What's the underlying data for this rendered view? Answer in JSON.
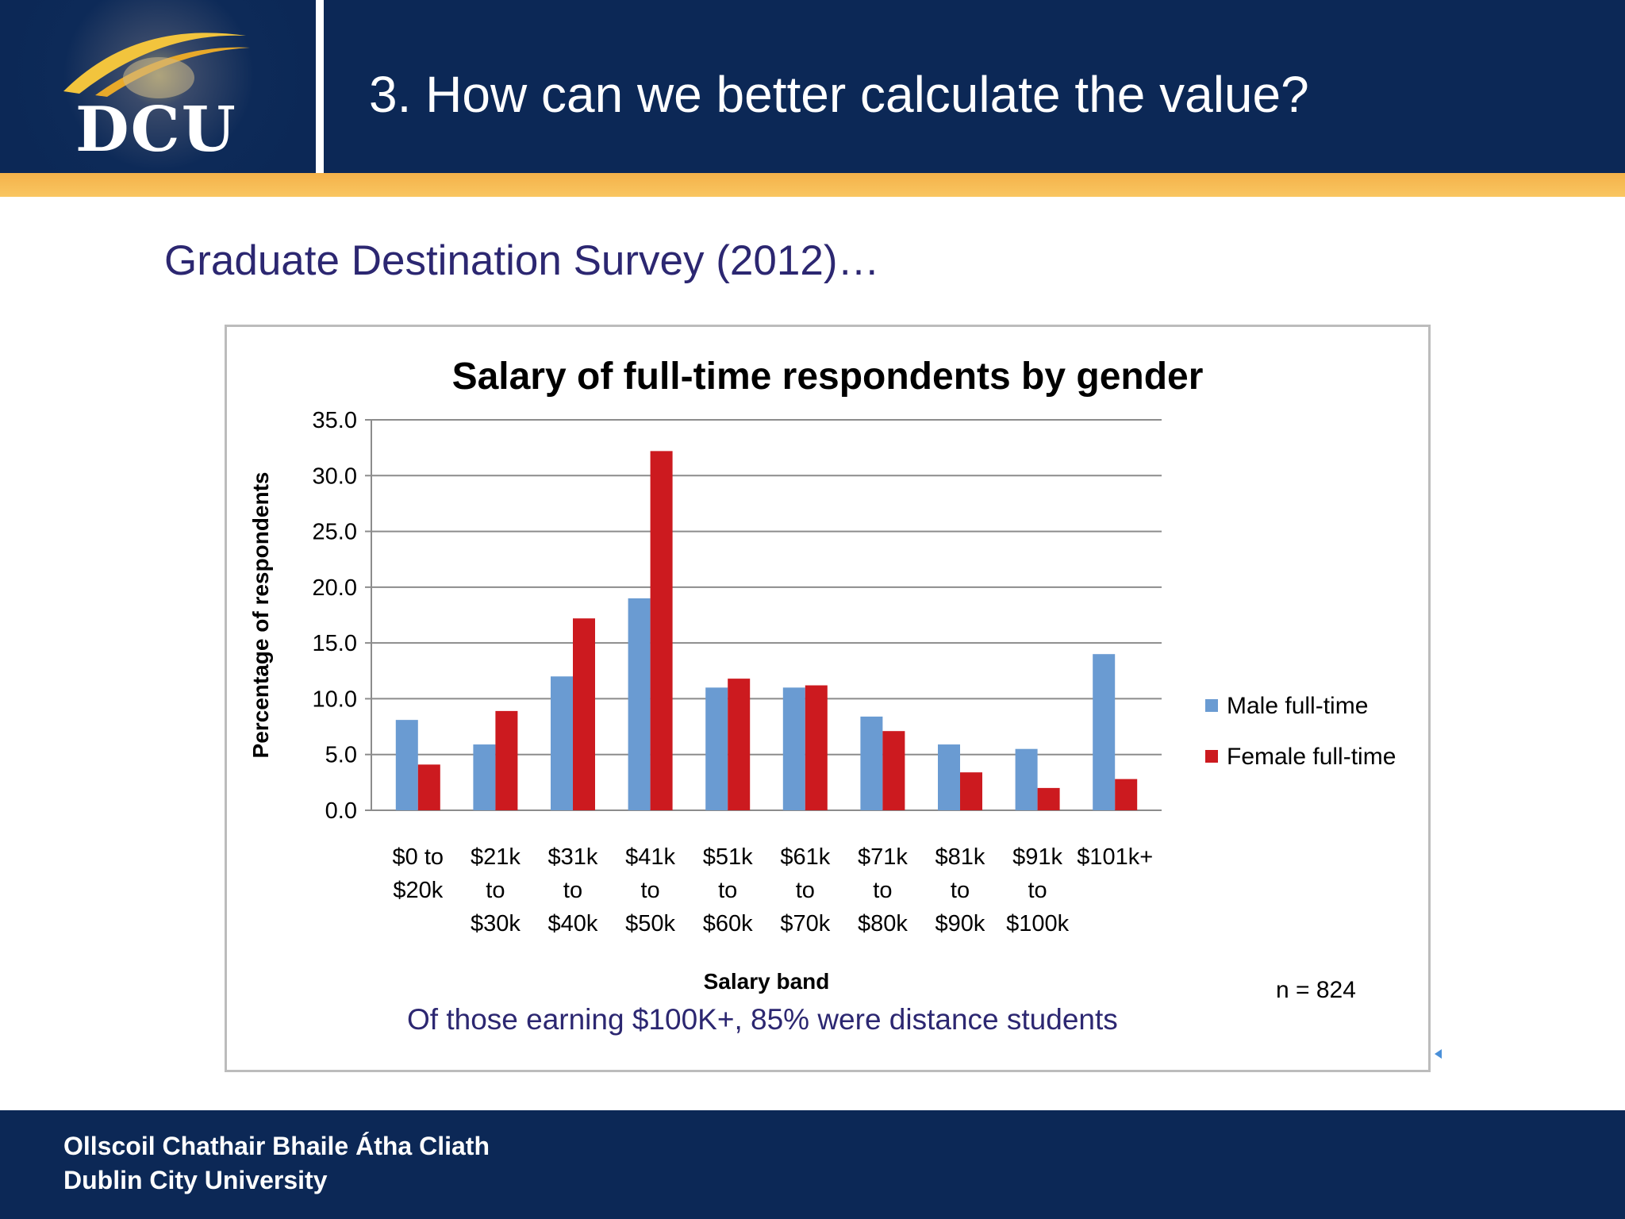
{
  "header": {
    "logo_text": "DCU",
    "title": "3. How can we better calculate the value?"
  },
  "subtitle": "Graduate Destination Survey (2012)…",
  "chart_note": "Of those earning $100K+, 85% were distance students",
  "footer": {
    "line1": "Ollscoil Chathair Bhaile Átha Cliath",
    "line2": "Dublin City University"
  },
  "colors": {
    "header_bg": "#0c2856",
    "accent_gold": "#f6b94f",
    "male": "#6a9bd2",
    "female": "#cc1a1f"
  },
  "chart_data": {
    "type": "bar",
    "title": "Salary of full-time respondents by gender",
    "xlabel": "Salary band",
    "ylabel": "Percentage of respondents",
    "ylim": [
      0,
      35
    ],
    "yticks": [
      "0.0",
      "5.0",
      "10.0",
      "15.0",
      "20.0",
      "25.0",
      "30.0",
      "35.0"
    ],
    "grid": true,
    "legend_position": "right",
    "annotation": "n = 824",
    "categories": [
      [
        "$0 to",
        "$20k"
      ],
      [
        "$21k",
        "to",
        "$30k"
      ],
      [
        "$31k",
        "to",
        "$40k"
      ],
      [
        "$41k",
        "to",
        "$50k"
      ],
      [
        "$51k",
        "to",
        "$60k"
      ],
      [
        "$61k",
        "to",
        "$70k"
      ],
      [
        "$71k",
        "to",
        "$80k"
      ],
      [
        "$81k",
        "to",
        "$90k"
      ],
      [
        "$91k",
        "to",
        "$100k"
      ],
      [
        "$101k+"
      ]
    ],
    "series": [
      {
        "name": "Male full-time",
        "color": "#6a9bd2",
        "values": [
          8.1,
          5.9,
          12.0,
          19.0,
          11.0,
          11.0,
          8.4,
          5.9,
          5.5,
          14.0
        ]
      },
      {
        "name": "Female full-time",
        "color": "#cc1a1f",
        "values": [
          4.1,
          8.9,
          17.2,
          32.2,
          11.8,
          11.2,
          7.1,
          3.4,
          2.0,
          2.8
        ]
      }
    ]
  }
}
